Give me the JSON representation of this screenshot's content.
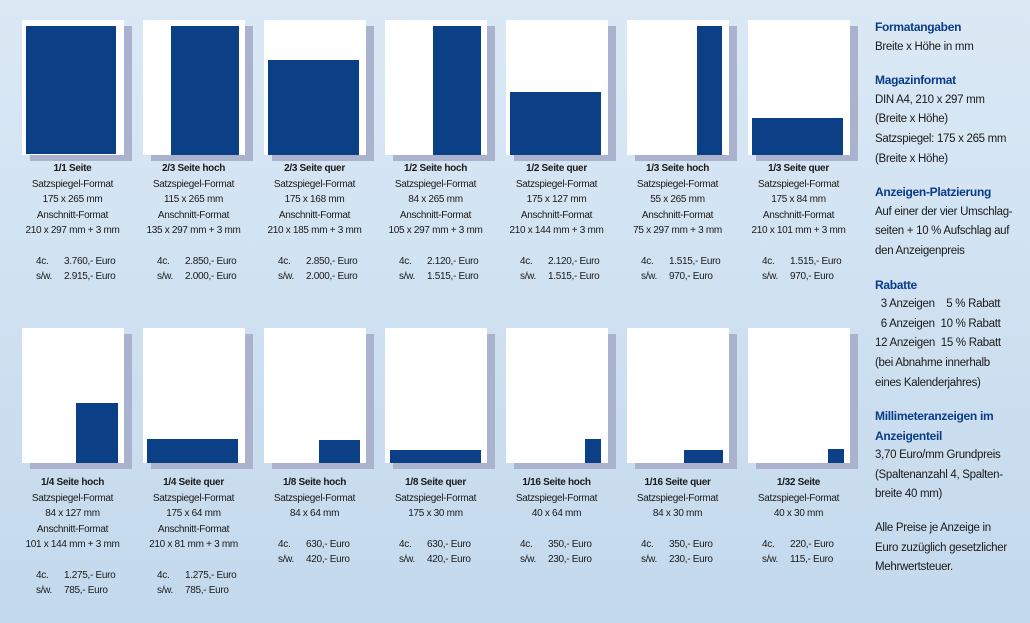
{
  "formats": [
    {
      "title": "1/1 Seite",
      "lines": [
        "Satzspiegel-Format",
        "175 x 265 mm",
        "Anschnitt-Format",
        "210 x 297 mm + 3 mm"
      ],
      "price_4c": "3.760,- Euro",
      "price_sw": "2.915,- Euro",
      "fill": "full"
    },
    {
      "title": "2/3 Seite hoch",
      "lines": [
        "Satzspiegel-Format",
        "115 x 265 mm",
        "Anschnitt-Format",
        "135 x 297 mm + 3 mm"
      ],
      "price_4c": "2.850,- Euro",
      "price_sw": "2.000,- Euro",
      "fill": "two-thirds-vertical"
    },
    {
      "title": "2/3 Seite quer",
      "lines": [
        "Satzspiegel-Format",
        "175 x 168 mm",
        "Anschnitt-Format",
        "210 x 185 mm + 3 mm"
      ],
      "price_4c": "2.850,- Euro",
      "price_sw": "2.000,- Euro",
      "fill": "two-thirds-horizontal"
    },
    {
      "title": "1/2 Seite hoch",
      "lines": [
        "Satzspiegel-Format",
        "84 x 265 mm",
        "Anschnitt-Format",
        "105 x 297 mm + 3 mm"
      ],
      "price_4c": "2.120,- Euro",
      "price_sw": "1.515,- Euro",
      "fill": "half-vertical"
    },
    {
      "title": "1/2 Seite quer",
      "lines": [
        "Satzspiegel-Format",
        "175 x 127 mm",
        "Anschnitt-Format",
        "210 x 144 mm + 3 mm"
      ],
      "price_4c": "2.120,- Euro",
      "price_sw": "1.515,- Euro",
      "fill": "half-horizontal"
    },
    {
      "title": "1/3 Seite hoch",
      "lines": [
        "Satzspiegel-Format",
        "55 x 265 mm",
        "Anschnitt-Format",
        "75 x 297 mm + 3 mm"
      ],
      "price_4c": "1.515,- Euro",
      "price_sw": "970,- Euro",
      "fill": "third-vertical"
    },
    {
      "title": "1/3 Seite quer",
      "lines": [
        "Satzspiegel-Format",
        "175 x 84 mm",
        "Anschnitt-Format",
        "210 x 101 mm + 3 mm"
      ],
      "price_4c": "1.515,- Euro",
      "price_sw": "970,- Euro",
      "fill": "third-horizontal"
    },
    {
      "title": "1/4 Seite hoch",
      "lines": [
        "Satzspiegel-Format",
        "84 x 127 mm",
        "Anschnitt-Format",
        "101 x 144 mm + 3 mm"
      ],
      "price_4c": "1.275,- Euro",
      "price_sw": "785,- Euro",
      "fill": "quarter-vertical"
    },
    {
      "title": "1/4 Seite quer",
      "lines": [
        "Satzspiegel-Format",
        "175 x 64 mm",
        "Anschnitt-Format",
        "210 x 81 mm + 3 mm"
      ],
      "price_4c": "1.275,- Euro",
      "price_sw": "785,- Euro",
      "fill": "quarter-horizontal"
    },
    {
      "title": "1/8 Seite hoch",
      "lines": [
        "Satzspiegel-Format",
        "84 x 64 mm"
      ],
      "price_4c": "630,- Euro",
      "price_sw": "420,- Euro",
      "fill": "eighth-vertical"
    },
    {
      "title": "1/8 Seite quer",
      "lines": [
        "Satzspiegel-Format",
        "175 x 30 mm"
      ],
      "price_4c": "630,- Euro",
      "price_sw": "420,- Euro",
      "fill": "eighth-horizontal"
    },
    {
      "title": "1/16 Seite hoch",
      "lines": [
        "Satzspiegel-Format",
        "40 x 64 mm"
      ],
      "price_4c": "350,- Euro",
      "price_sw": "230,- Euro",
      "fill": "sixteenth-vertical"
    },
    {
      "title": "1/16 Seite quer",
      "lines": [
        "Satzspiegel-Format",
        "84 x 30 mm"
      ],
      "price_4c": "350,- Euro",
      "price_sw": "230,- Euro",
      "fill": "sixteenth-horizontal"
    },
    {
      "title": "1/32 Seite",
      "lines": [
        "Satzspiegel-Format",
        "40 x 30 mm"
      ],
      "price_4c": "220,- Euro",
      "price_sw": "115,- Euro",
      "fill": "thirty-second"
    }
  ],
  "labels": {
    "fourc": "4c.",
    "sw": "s/w."
  },
  "colors": {
    "ad_fill": "#0b3f86",
    "heading": "#0a3b8a",
    "background": "#cfe1f1"
  },
  "sidebar": [
    {
      "heading": "Formatangaben",
      "lines": [
        "Breite x Höhe in mm"
      ]
    },
    {
      "heading": "Magazinformat",
      "lines": [
        "DIN A4, 210 x 297 mm",
        "(Breite x Höhe)",
        "Satzspiegel: 175 x 265 mm",
        "(Breite x Höhe)"
      ]
    },
    {
      "heading": "Anzeigen-Platzierung",
      "lines": [
        "Auf einer der vier Umschlag-",
        "seiten + 10 % Aufschlag auf",
        "den Anzeigenpreis"
      ]
    },
    {
      "heading": "Rabatte",
      "lines": [
        "  3 Anzeigen    5 % Rabatt",
        "  6 Anzeigen  10 % Rabatt",
        "12 Anzeigen  15 % Rabatt",
        "(bei Abnahme innerhalb",
        "eines Kalenderjahres)"
      ]
    },
    {
      "heading": "Millimeteranzeigen im Anzeigenteil",
      "lines": [
        "3,70 Euro/mm Grundpreis",
        "(Spaltenanzahl 4, Spalten-",
        "breite 40 mm)"
      ]
    },
    {
      "heading": "",
      "lines": [
        "Alle Preise je Anzeige in",
        "Euro zuzüglich gesetzlicher",
        "Mehrwertsteuer."
      ]
    }
  ]
}
